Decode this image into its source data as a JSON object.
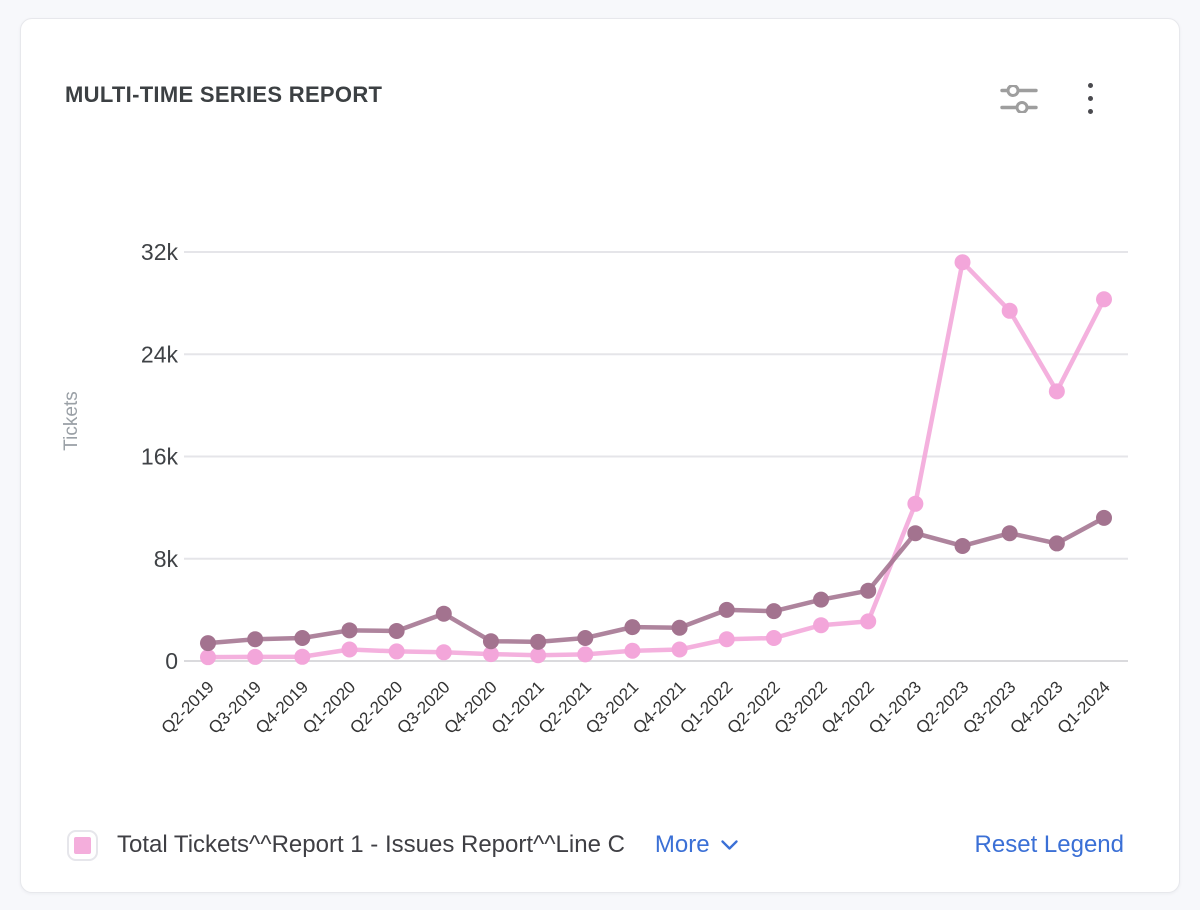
{
  "card": {
    "title": "MULTI-TIME SERIES REPORT"
  },
  "toolbar": {
    "filter_icon": "sliders-icon",
    "menu_icon": "kebab-menu-icon",
    "icon_color": "#9e9e9e"
  },
  "chart_data": {
    "type": "line",
    "title": "MULTI-TIME SERIES REPORT",
    "xlabel": "",
    "ylabel": "Tickets",
    "ylim": [
      0,
      32000
    ],
    "grid": true,
    "legend_position": "bottom",
    "xticklabel_rotation": 45,
    "yticks": {
      "values": [
        0,
        8000,
        16000,
        24000,
        32000
      ],
      "labels": [
        "0",
        "8k",
        "16k",
        "24k",
        "32k"
      ]
    },
    "categories": [
      "Q2-2019",
      "Q3-2019",
      "Q4-2019",
      "Q1-2020",
      "Q2-2020",
      "Q3-2020",
      "Q4-2020",
      "Q1-2021",
      "Q2-2021",
      "Q3-2021",
      "Q4-2021",
      "Q1-2022",
      "Q2-2022",
      "Q3-2022",
      "Q4-2022",
      "Q1-2023",
      "Q2-2023",
      "Q3-2023",
      "Q4-2023",
      "Q1-2024"
    ],
    "series": [
      {
        "name": "Total Tickets^^Report 1 - Issues Report^^Line C",
        "color": "#F3A6DA",
        "values": [
          300,
          320,
          330,
          900,
          750,
          680,
          540,
          450,
          520,
          800,
          900,
          1700,
          1800,
          2800,
          3100,
          12300,
          31200,
          27400,
          21100,
          28300
        ]
      },
      {
        "name": "",
        "color": "#A3738F",
        "values": [
          1400,
          1700,
          1800,
          2400,
          2350,
          3700,
          1550,
          1500,
          1800,
          2650,
          2600,
          4000,
          3900,
          4800,
          5500,
          10000,
          9000,
          10000,
          9200,
          11200
        ]
      }
    ],
    "axis_text_color": "#3f4246",
    "axis_name_color": "#9aa0a6",
    "gridline_color": "#e5e5e9",
    "baseline_color": "#dadadd"
  },
  "legend": {
    "items": [
      {
        "label": "Total Tickets^^Report 1 - Issues Report^^Line C",
        "color": "#F4AEDC"
      }
    ],
    "more_label": "More",
    "reset_label": "Reset Legend",
    "link_color": "#3B70D6"
  }
}
